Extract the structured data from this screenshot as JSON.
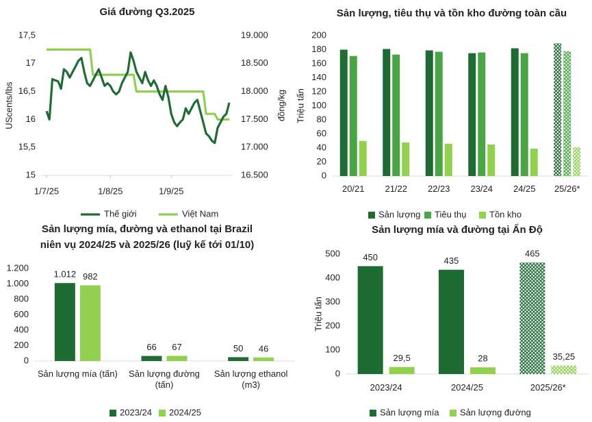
{
  "chart_data": [
    {
      "type": "line",
      "title": "Giá đường Q3.2025",
      "ylabel": "UScents/lbs",
      "y2label": "đồng/kg",
      "categories": [
        "1/7/25",
        null,
        null,
        null,
        null,
        null,
        null,
        null,
        null,
        null,
        null,
        null,
        null,
        null,
        null,
        null,
        null,
        null,
        null,
        null,
        null,
        null,
        "1/8/25",
        null,
        null,
        null,
        null,
        null,
        null,
        null,
        null,
        null,
        null,
        null,
        null,
        null,
        null,
        null,
        null,
        null,
        null,
        null,
        null,
        "1/9/25",
        null,
        null,
        null,
        null,
        null,
        null,
        null,
        null,
        null,
        null,
        null,
        null,
        null,
        null,
        null,
        null,
        null,
        null,
        null,
        null
      ],
      "series": [
        {
          "name": "Thế giới",
          "color": "#1e6b34",
          "values": [
            16.15,
            16.0,
            16.72,
            16.7,
            16.68,
            16.55,
            16.9,
            16.85,
            16.75,
            16.85,
            16.95,
            17.05,
            17.1,
            16.85,
            16.65,
            16.6,
            16.7,
            16.8,
            16.9,
            16.75,
            16.6,
            16.65,
            16.6,
            16.5,
            16.45,
            16.5,
            16.65,
            16.75,
            16.85,
            17.2,
            17.05,
            16.85,
            16.75,
            16.65,
            16.85,
            16.7,
            16.6,
            16.7,
            16.6,
            16.45,
            16.35,
            16.6,
            16.4,
            16.1,
            15.95,
            15.88,
            15.95,
            16.0,
            16.2,
            16.1,
            16.2,
            16.3,
            16.35,
            16.15,
            15.95,
            15.75,
            15.7,
            15.62,
            15.58,
            15.85,
            15.95,
            16.05,
            16.1,
            16.3
          ]
        },
        {
          "name": "Việt Nam",
          "color": "#8fce53",
          "axis": "y2",
          "values": [
            18750,
            18750,
            18750,
            18750,
            18750,
            18750,
            18750,
            18750,
            18750,
            18750,
            18750,
            18750,
            18750,
            18750,
            18750,
            18750,
            18300,
            18300,
            18300,
            18300,
            18300,
            18300,
            18300,
            18300,
            18300,
            18300,
            18300,
            18300,
            18300,
            18300,
            18300,
            18000,
            18000,
            18000,
            18000,
            18000,
            18000,
            18000,
            18000,
            18000,
            18000,
            18000,
            18000,
            18000,
            18000,
            18000,
            18000,
            18000,
            18000,
            18000,
            18000,
            18000,
            18000,
            18000,
            18000,
            17600,
            17600,
            17600,
            17600,
            17500,
            17500,
            17500,
            17500,
            17500
          ]
        }
      ],
      "ylim": [
        15,
        17.5
      ],
      "yticks": [
        15,
        {
          "value": 15.5,
          "label": "15,5"
        },
        16,
        {
          "value": 16.5,
          "label": "16,5"
        },
        17,
        {
          "value": 17.5,
          "label": "17,5"
        }
      ],
      "y2lim": [
        16500,
        19000
      ],
      "y2ticks": [
        {
          "value": 16500,
          "label": "16.500"
        },
        {
          "value": 17000,
          "label": "17.000"
        },
        {
          "value": 17500,
          "label": "17.500"
        },
        {
          "value": 18000,
          "label": "18.000"
        },
        {
          "value": 18500,
          "label": "18.500"
        },
        {
          "value": 19000,
          "label": "19.000"
        }
      ],
      "legend": "bottom"
    },
    {
      "type": "bar",
      "title": "Sản lượng, tiêu thụ và tồn kho đường toàn cầu",
      "ylabel": "Triệu tấn",
      "categories": [
        "20/21",
        "21/22",
        "22/23",
        "23/24",
        "24/25",
        "25/26*"
      ],
      "hatched": [
        false,
        false,
        false,
        false,
        false,
        true
      ],
      "series": [
        {
          "name": "Sản lượng",
          "color": "#1e6b34",
          "values": [
            180,
            181,
            179,
            175,
            182,
            189
          ]
        },
        {
          "name": "Tiêu thụ",
          "color": "#4aa544",
          "values": [
            171,
            173,
            177,
            176,
            175,
            178
          ]
        },
        {
          "name": "Tồn kho",
          "color": "#92d050",
          "values": [
            50,
            48,
            46,
            45,
            39,
            41
          ]
        }
      ],
      "ylim": [
        0,
        200
      ],
      "yticks": [
        0,
        20,
        40,
        60,
        80,
        100,
        120,
        140,
        160,
        180,
        200
      ],
      "legend": "bottom"
    },
    {
      "type": "bar",
      "title": "Sản lượng mía, đường và ethanol tại Brazil",
      "subtitle": "niên vụ 2024/25 và 2025/26 (luỹ kế tới 01/10)",
      "categories": [
        "Sản lượng mía (tấn)",
        "Sản lượng đường (tấn)",
        "Sản lượng ethanol (m3)"
      ],
      "series": [
        {
          "name": "2023/24",
          "color": "#1e6b34",
          "values": [
            1012,
            66,
            50
          ],
          "value_labels": [
            "1.012",
            "66",
            "50"
          ]
        },
        {
          "name": "2024/25",
          "color": "#92d050",
          "values": [
            982,
            67,
            46
          ]
        }
      ],
      "ylim": [
        0,
        1200
      ],
      "yticks": [
        0,
        200,
        400,
        600,
        800,
        {
          "value": 1000,
          "label": "1.000"
        },
        {
          "value": 1200,
          "label": "1.200"
        }
      ],
      "data_labels": true,
      "legend": "bottom"
    },
    {
      "type": "bar",
      "title": "Sản lượng mía và đường tại Ấn Độ",
      "ylabel": "Triệu tấn",
      "categories": [
        "2023/24",
        "2024/25",
        "2025/26*"
      ],
      "hatched": [
        false,
        false,
        true
      ],
      "series": [
        {
          "name": "Sản lượng mía",
          "color": "#1e6b34",
          "values": [
            450,
            435,
            465
          ]
        },
        {
          "name": "Sản lượng đường",
          "color": "#92d050",
          "values": [
            29.5,
            28,
            35.25
          ],
          "value_labels": [
            "29,5",
            "28",
            "35,25"
          ]
        }
      ],
      "ylim": [
        0,
        500
      ],
      "yticks": [
        0,
        100,
        200,
        300,
        400,
        500
      ],
      "data_labels": true,
      "legend": "bottom"
    }
  ]
}
